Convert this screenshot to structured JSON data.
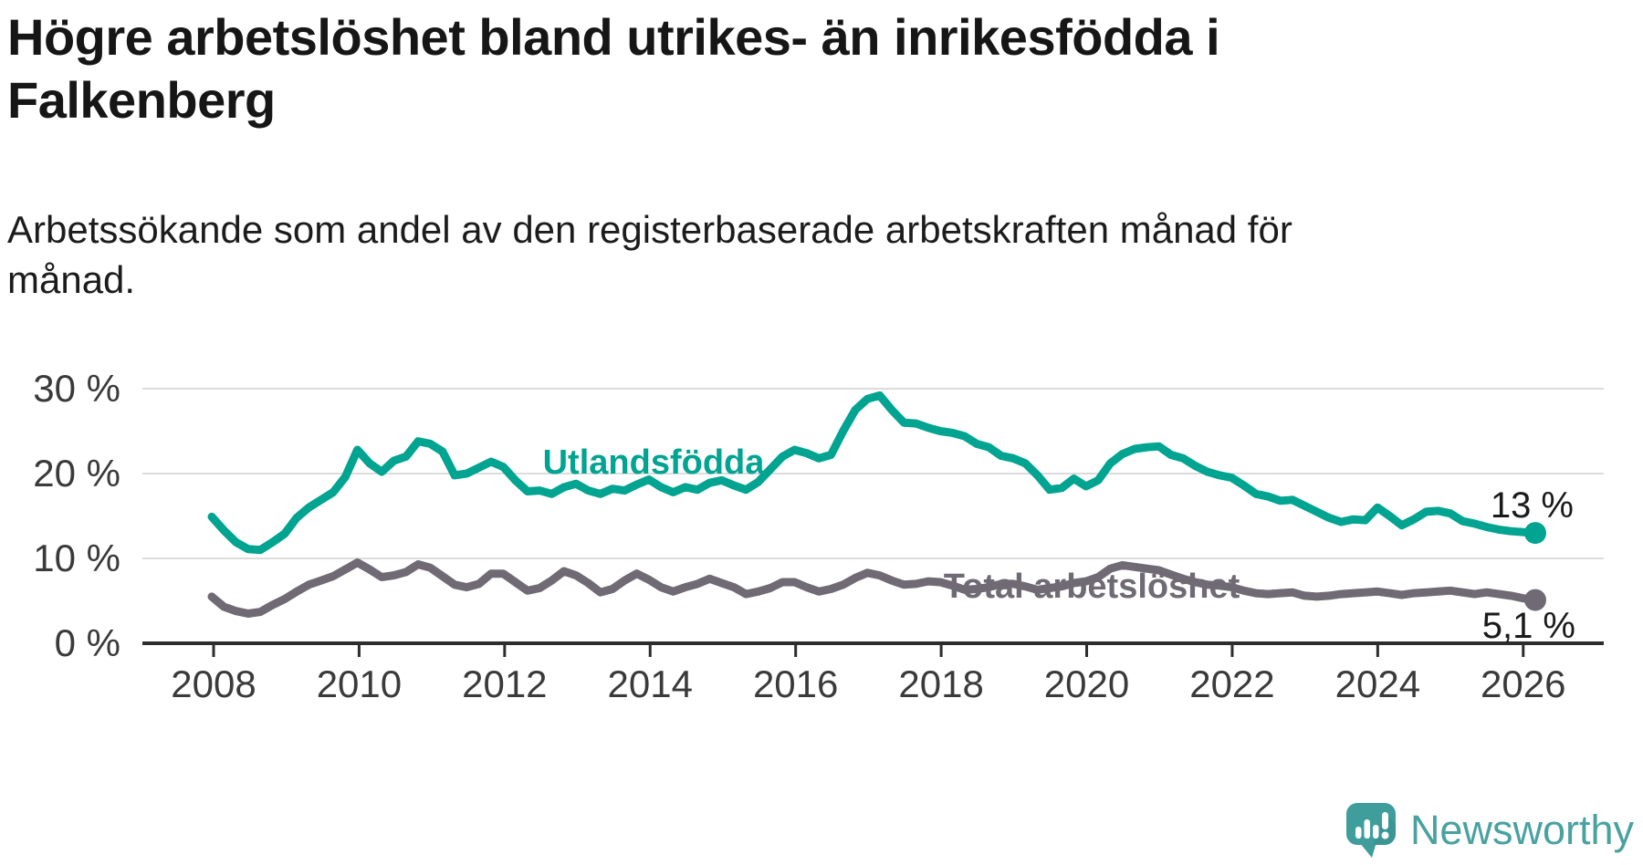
{
  "title": {
    "line1": "Högre arbetslöshet bland utrikes- än inrikesfödda i",
    "line2": "Falkenberg"
  },
  "subtitle": {
    "line1": "Arbetssökande som andel av den registerbaserade arbetskraften månad för",
    "line2": "månad."
  },
  "chart_data": {
    "type": "line",
    "title": "Högre arbetslöshet bland utrikes- än inrikesfödda i Falkenberg",
    "subtitle": "Arbetssökande som andel av den registerbaserade arbetskraften månad för månad.",
    "x_start": "2008-01",
    "x_interval_months": 2,
    "x_end": "2026-03",
    "xlabel": "",
    "ylabel": "",
    "ylim": [
      0,
      32
    ],
    "grid": "horizontal",
    "y_tick_values": [
      0,
      10,
      20,
      30
    ],
    "y_tick_labels": [
      "0 %",
      "10 %",
      "20 %",
      "30 %"
    ],
    "x_tick_labels": [
      "2008",
      "2010",
      "2012",
      "2014",
      "2016",
      "2018",
      "2020",
      "2022",
      "2024",
      "2026"
    ],
    "axis_color": "#2d2d2d",
    "gridline_color": "#dcdcdc",
    "tick_label_color": "#3a3a3a",
    "end_label_color": "#1a1a1a",
    "legend_position": "inline-labels",
    "series": [
      {
        "name": "Utlandsfödda",
        "color": "#00a491",
        "end_label": "13 %",
        "last_value": 13.0,
        "values": [
          14.9,
          13.3,
          11.9,
          11.1,
          11.0,
          11.9,
          12.9,
          14.8,
          16.0,
          16.9,
          17.8,
          19.6,
          22.8,
          21.2,
          20.2,
          21.5,
          22.0,
          23.8,
          23.5,
          22.6,
          19.8,
          20.0,
          20.7,
          21.4,
          20.8,
          19.2,
          17.9,
          18.0,
          17.6,
          18.4,
          18.8,
          18.0,
          17.6,
          18.2,
          18.0,
          18.7,
          19.3,
          18.4,
          17.8,
          18.4,
          18.1,
          18.9,
          19.2,
          18.6,
          18.1,
          19.0,
          20.5,
          22.0,
          22.8,
          22.4,
          21.8,
          22.2,
          25.0,
          27.5,
          28.8,
          29.2,
          27.5,
          26.0,
          25.9,
          25.4,
          25.0,
          24.8,
          24.4,
          23.5,
          23.1,
          22.1,
          21.8,
          21.2,
          19.8,
          18.1,
          18.3,
          19.4,
          18.5,
          19.2,
          21.2,
          22.3,
          22.9,
          23.1,
          23.2,
          22.2,
          21.8,
          20.9,
          20.2,
          19.8,
          19.5,
          18.6,
          17.6,
          17.3,
          16.8,
          16.9,
          16.2,
          15.5,
          14.8,
          14.3,
          14.6,
          14.5,
          16.0,
          15.0,
          13.9,
          14.6,
          15.5,
          15.6,
          15.3,
          14.4,
          14.1,
          13.7,
          13.4,
          13.2,
          13.1,
          13.0
        ]
      },
      {
        "name": "Total arbetslöshet",
        "color": "#6f6a74",
        "end_label": "5,1 %",
        "last_value": 5.1,
        "values": [
          5.5,
          4.3,
          3.8,
          3.5,
          3.7,
          4.5,
          5.2,
          6.1,
          6.9,
          7.4,
          7.9,
          8.7,
          9.5,
          8.7,
          7.8,
          8.0,
          8.4,
          9.3,
          8.9,
          7.9,
          6.9,
          6.6,
          7.0,
          8.2,
          8.2,
          7.2,
          6.2,
          6.5,
          7.4,
          8.5,
          8.0,
          7.1,
          6.0,
          6.4,
          7.4,
          8.2,
          7.5,
          6.6,
          6.1,
          6.6,
          7.0,
          7.6,
          7.1,
          6.6,
          5.8,
          6.1,
          6.5,
          7.2,
          7.2,
          6.6,
          6.1,
          6.4,
          6.9,
          7.7,
          8.3,
          8.0,
          7.4,
          6.9,
          7.0,
          7.3,
          7.2,
          6.8,
          6.3,
          6.4,
          6.6,
          7.0,
          7.0,
          6.7,
          6.3,
          6.5,
          6.7,
          7.1,
          7.3,
          7.8,
          8.8,
          9.2,
          9.0,
          8.8,
          8.6,
          8.1,
          7.6,
          7.2,
          6.9,
          6.8,
          6.6,
          6.2,
          5.9,
          5.8,
          5.9,
          6.0,
          5.6,
          5.5,
          5.6,
          5.8,
          5.9,
          6.0,
          6.1,
          5.9,
          5.7,
          5.9,
          6.0,
          6.1,
          6.2,
          6.0,
          5.8,
          6.0,
          5.8,
          5.6,
          5.3,
          5.1
        ]
      }
    ]
  },
  "branding": {
    "logo_text": "Newsworthy",
    "logo_text_color": "#4aa2a0",
    "logo_icon": "newsworthy-speech-bubble-bar-chart-icon",
    "logo_icon_color": "#3f9e9b"
  }
}
